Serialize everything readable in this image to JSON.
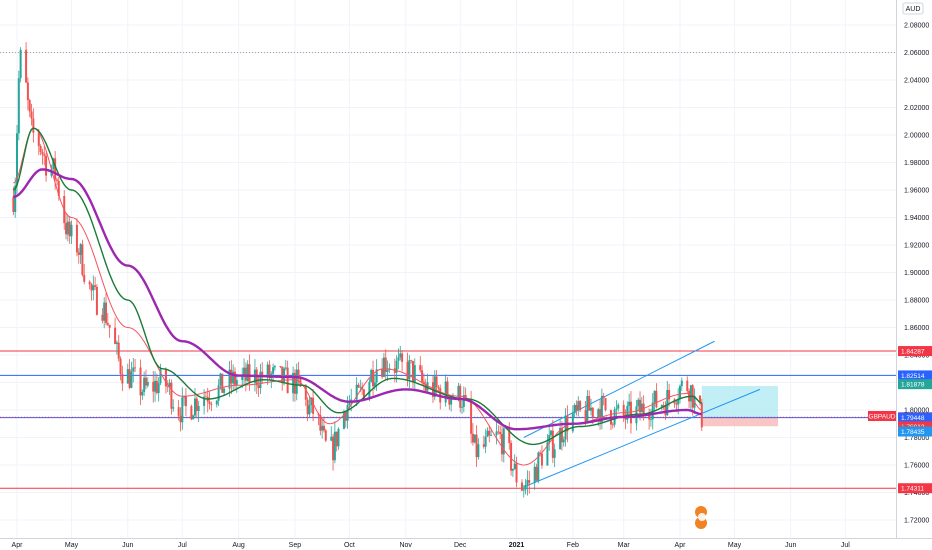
{
  "currency": "AUD",
  "symbol_label": "GBPAUD",
  "countdown": "20:37:41",
  "colors": {
    "bull": "#26a69a",
    "bear": "#ef5350",
    "ema_fast": "#f7525f",
    "ema_mid": "#1b7a37",
    "ema_slow": "#9c27b0",
    "hline_red": "#f23645",
    "hline_blue": "#2962ff",
    "channel": "#2196f3",
    "target_zone": "#b2ebf2",
    "stop_zone": "#f8bbbb"
  },
  "price_tags": [
    {
      "label": "1.84287",
      "price": 1.84287,
      "color": "#f23645"
    },
    {
      "label": "1.82514",
      "price": 1.82514,
      "color": "#2962ff"
    },
    {
      "label": "1.81878",
      "price": 1.81878,
      "color": "#26a69a"
    },
    {
      "label": "1.79470",
      "price": 1.7947,
      "color": "#f23645"
    },
    {
      "label": "1.79448",
      "price": 1.79448,
      "color": "#2962ff"
    },
    {
      "label": "1.78812",
      "price": 1.78812,
      "color": "#f23645"
    },
    {
      "label": "1.78435",
      "price": 1.78435,
      "color": "#2196f3"
    },
    {
      "label": "1.74311",
      "price": 1.74311,
      "color": "#f23645"
    }
  ],
  "chart_data": {
    "type": "candlestick",
    "title": "",
    "ylabel": "AUD",
    "ylim": [
      1.7,
      2.1
    ],
    "y_ticks": [
      "1.72000",
      "1.74000",
      "1.76000",
      "1.78000",
      "1.80000",
      "1.82000",
      "1.84000",
      "1.86000",
      "1.88000",
      "1.90000",
      "1.92000",
      "1.94000",
      "1.96000",
      "1.98000",
      "2.00000",
      "2.02000",
      "2.04000",
      "2.06000",
      "2.08000"
    ],
    "x_ticks": [
      "Apr",
      "May",
      "Jun",
      "Jul",
      "Aug",
      "Sep",
      "Oct",
      "Nov",
      "Dec",
      "2021",
      "Feb",
      "Mar",
      "Apr",
      "May",
      "Jun",
      "Jul"
    ],
    "grid": true,
    "anchor_closes": [
      {
        "date": "2020-03-30",
        "close": 1.955
      },
      {
        "date": "2020-04-03",
        "close": 2.055
      },
      {
        "date": "2020-04-10",
        "close": 2.0
      },
      {
        "date": "2020-04-20",
        "close": 1.975
      },
      {
        "date": "2020-05-01",
        "close": 1.925
      },
      {
        "date": "2020-05-15",
        "close": 1.88
      },
      {
        "date": "2020-06-01",
        "close": 1.825
      },
      {
        "date": "2020-06-10",
        "close": 1.815
      },
      {
        "date": "2020-06-20",
        "close": 1.82
      },
      {
        "date": "2020-07-01",
        "close": 1.8
      },
      {
        "date": "2020-07-15",
        "close": 1.812
      },
      {
        "date": "2020-08-01",
        "close": 1.822
      },
      {
        "date": "2020-08-15",
        "close": 1.825
      },
      {
        "date": "2020-09-01",
        "close": 1.82
      },
      {
        "date": "2020-09-10",
        "close": 1.8
      },
      {
        "date": "2020-09-20",
        "close": 1.77
      },
      {
        "date": "2020-10-01",
        "close": 1.805
      },
      {
        "date": "2020-10-20",
        "close": 1.835
      },
      {
        "date": "2020-11-01",
        "close": 1.83
      },
      {
        "date": "2020-11-15",
        "close": 1.815
      },
      {
        "date": "2020-12-01",
        "close": 1.81
      },
      {
        "date": "2020-12-10",
        "close": 1.77
      },
      {
        "date": "2020-12-22",
        "close": 1.78
      },
      {
        "date": "2021-01-05",
        "close": 1.745
      },
      {
        "date": "2021-01-20",
        "close": 1.775
      },
      {
        "date": "2021-02-01",
        "close": 1.795
      },
      {
        "date": "2021-02-15",
        "close": 1.802
      },
      {
        "date": "2021-03-01",
        "close": 1.795
      },
      {
        "date": "2021-03-20",
        "close": 1.805
      },
      {
        "date": "2021-04-05",
        "close": 1.818
      },
      {
        "date": "2021-04-13",
        "close": 1.7947
      }
    ],
    "series": [
      {
        "name": "",
        "type": "ema",
        "anchors": [
          {
            "date": "2020-03-30",
            "value": 1.965
          },
          {
            "date": "2020-04-10",
            "value": 2.005
          },
          {
            "date": "2020-05-01",
            "value": 1.94
          },
          {
            "date": "2020-06-01",
            "value": 1.86
          },
          {
            "date": "2020-07-01",
            "value": 1.81
          },
          {
            "date": "2020-08-01",
            "value": 1.818
          },
          {
            "date": "2020-09-01",
            "value": 1.822
          },
          {
            "date": "2020-09-20",
            "value": 1.79
          },
          {
            "date": "2020-10-20",
            "value": 1.83
          },
          {
            "date": "2020-12-01",
            "value": 1.81
          },
          {
            "date": "2021-01-05",
            "value": 1.76
          },
          {
            "date": "2021-02-01",
            "value": 1.79
          },
          {
            "date": "2021-03-01",
            "value": 1.798
          },
          {
            "date": "2021-04-05",
            "value": 1.812
          },
          {
            "date": "2021-04-13",
            "value": 1.8
          }
        ]
      },
      {
        "name": "",
        "type": "ema",
        "anchors": [
          {
            "date": "2020-03-30",
            "value": 1.96
          },
          {
            "date": "2020-04-10",
            "value": 2.005
          },
          {
            "date": "2020-05-01",
            "value": 1.96
          },
          {
            "date": "2020-06-01",
            "value": 1.88
          },
          {
            "date": "2020-06-20",
            "value": 1.83
          },
          {
            "date": "2020-07-15",
            "value": 1.808
          },
          {
            "date": "2020-08-15",
            "value": 1.822
          },
          {
            "date": "2020-09-05",
            "value": 1.818
          },
          {
            "date": "2020-09-25",
            "value": 1.798
          },
          {
            "date": "2020-10-25",
            "value": 1.823
          },
          {
            "date": "2020-12-05",
            "value": 1.808
          },
          {
            "date": "2021-01-10",
            "value": 1.775
          },
          {
            "date": "2021-02-05",
            "value": 1.788
          },
          {
            "date": "2021-03-10",
            "value": 1.797
          },
          {
            "date": "2021-04-08",
            "value": 1.81
          },
          {
            "date": "2021-04-13",
            "value": 1.805
          }
        ]
      },
      {
        "name": "",
        "type": "ema",
        "anchors": [
          {
            "date": "2020-03-30",
            "value": 1.955
          },
          {
            "date": "2020-04-15",
            "value": 1.975
          },
          {
            "date": "2020-05-01",
            "value": 1.968
          },
          {
            "date": "2020-06-01",
            "value": 1.905
          },
          {
            "date": "2020-07-01",
            "value": 1.85
          },
          {
            "date": "2020-08-01",
            "value": 1.825
          },
          {
            "date": "2020-09-01",
            "value": 1.824
          },
          {
            "date": "2020-10-01",
            "value": 1.806
          },
          {
            "date": "2020-11-01",
            "value": 1.815
          },
          {
            "date": "2020-12-01",
            "value": 1.808
          },
          {
            "date": "2021-01-01",
            "value": 1.786
          },
          {
            "date": "2021-02-01",
            "value": 1.79
          },
          {
            "date": "2021-03-01",
            "value": 1.795
          },
          {
            "date": "2021-04-05",
            "value": 1.8
          },
          {
            "date": "2021-04-13",
            "value": 1.797
          }
        ]
      }
    ],
    "horizontal_lines": [
      {
        "price": 1.84287,
        "color": "#f23645"
      },
      {
        "price": 1.82514,
        "color": "#2962ff"
      },
      {
        "price": 1.79448,
        "color": "#2962ff"
      },
      {
        "price": 1.74311,
        "color": "#f23645"
      },
      {
        "price": 2.06,
        "color": "#9aa0a8",
        "style": "dotted"
      },
      {
        "price": 1.7947,
        "color": "#f23645",
        "style": "dotted"
      }
    ],
    "channel": {
      "upper": [
        {
          "date": "2021-01-05",
          "price": 1.78
        },
        {
          "date": "2021-04-20",
          "price": 1.85
        }
      ],
      "lower": [
        {
          "date": "2021-01-05",
          "price": 1.744
        },
        {
          "date": "2021-05-15",
          "price": 1.815
        }
      ]
    },
    "position_box": {
      "start": "2021-04-13",
      "end": "2021-05-25",
      "entry": 1.7947,
      "target": 1.8175,
      "stop": 1.7882
    }
  }
}
